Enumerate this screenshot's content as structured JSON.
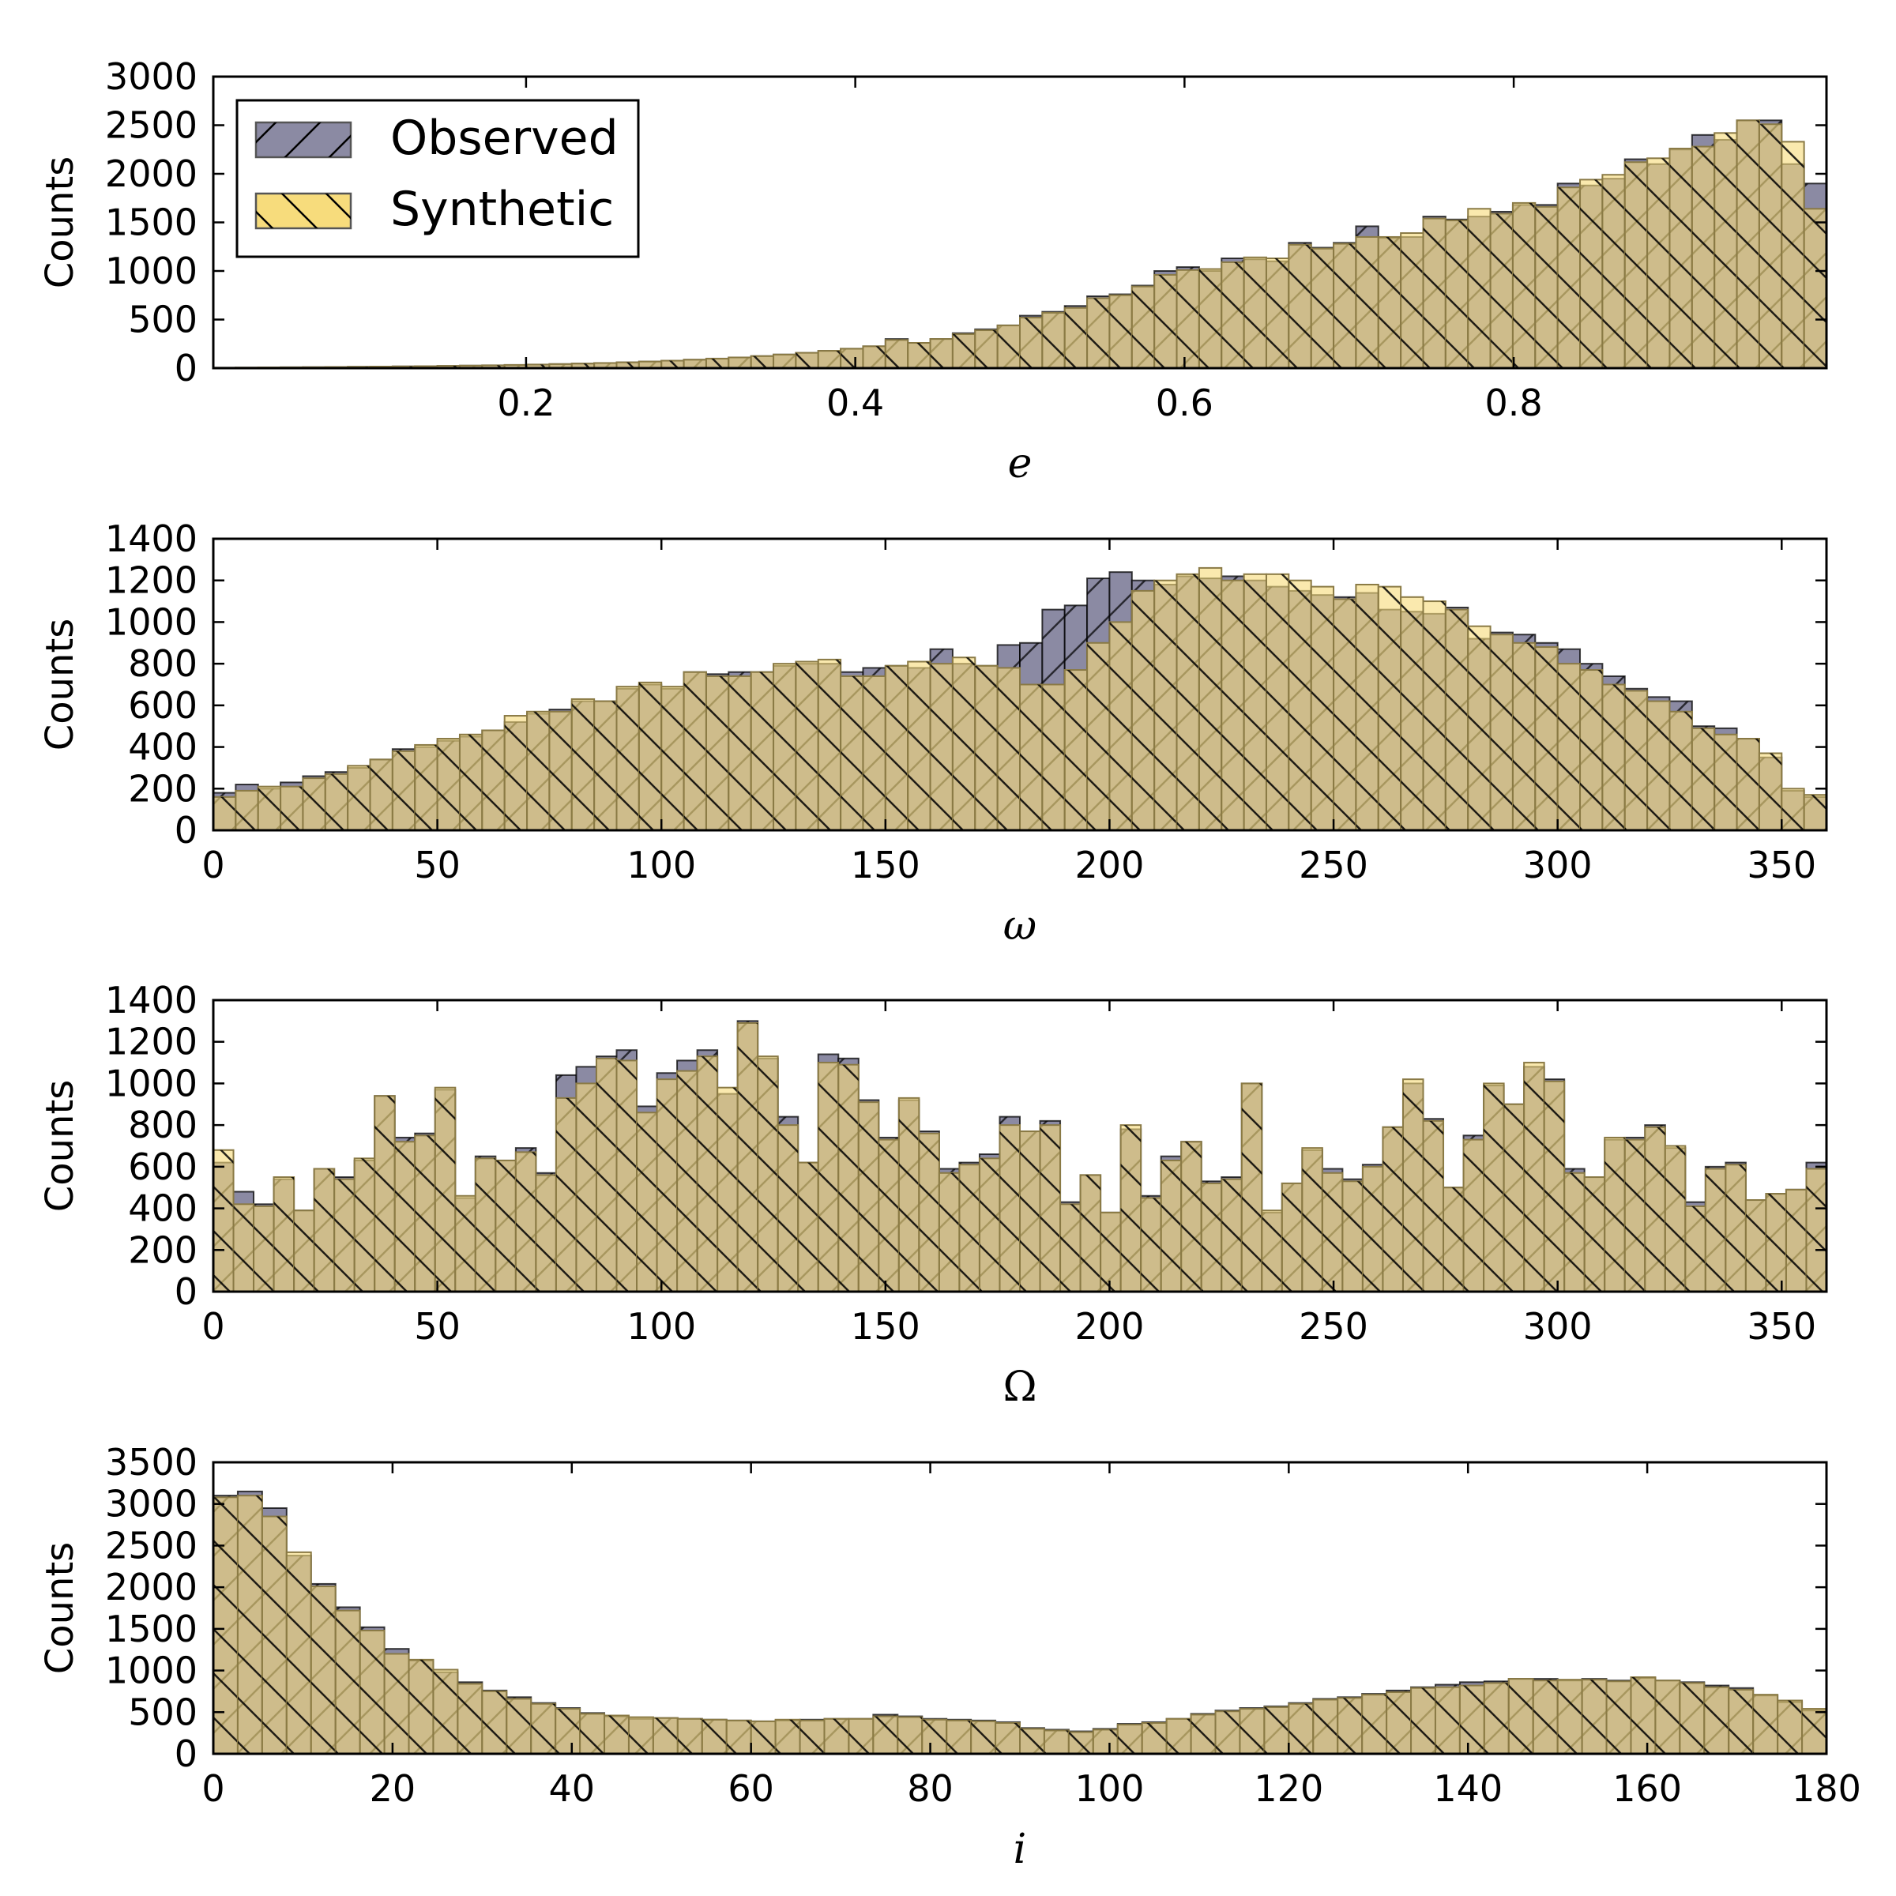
{
  "colors": {
    "observed_fill": "#8b8aa3",
    "synthetic_fill": "#f7dc7c",
    "overlap_fill": "#b9a36a",
    "edge": "#000000"
  },
  "legend": {
    "placement": "top-left of first panel",
    "items": [
      {
        "label": "Observed",
        "hatch": "forward-diagonal"
      },
      {
        "label": "Synthetic",
        "hatch": "back-diagonal"
      }
    ]
  },
  "chart_data": [
    {
      "type": "bar",
      "title": "",
      "xlabel": "e",
      "ylabel": "Counts",
      "xlim": [
        0.01,
        0.99
      ],
      "ylim": [
        0,
        3000
      ],
      "xticks": [
        0.2,
        0.4,
        0.6,
        0.8
      ],
      "xtick_labels": [
        "0.2",
        "0.4",
        "0.6",
        "0.8"
      ],
      "yticks": [
        0,
        500,
        1000,
        1500,
        2000,
        2500,
        3000
      ],
      "ytick_labels": [
        "0",
        "500",
        "1000",
        "1500",
        "2000",
        "2500",
        "3000"
      ],
      "grid": false,
      "series": [
        {
          "name": "Observed",
          "values": [
            5,
            6,
            8,
            9,
            10,
            12,
            14,
            16,
            18,
            20,
            23,
            26,
            29,
            33,
            37,
            42,
            47,
            53,
            60,
            68,
            77,
            87,
            98,
            110,
            124,
            140,
            158,
            178,
            200,
            225,
            300,
            260,
            300,
            360,
            400,
            440,
            540,
            580,
            640,
            740,
            760,
            850,
            1000,
            1040,
            1000,
            1130,
            1120,
            1100,
            1290,
            1240,
            1290,
            1460,
            1340,
            1350,
            1560,
            1530,
            1560,
            1610,
            1680,
            1680,
            1900,
            1880,
            1950,
            2150,
            2100,
            2250,
            2400,
            2350,
            2550,
            2550,
            2100,
            1900
          ]
        },
        {
          "name": "Synthetic",
          "values": [
            5,
            6,
            8,
            9,
            10,
            12,
            14,
            16,
            18,
            20,
            23,
            26,
            29,
            33,
            37,
            42,
            47,
            53,
            60,
            68,
            77,
            87,
            98,
            110,
            124,
            140,
            158,
            178,
            200,
            225,
            290,
            260,
            300,
            350,
            390,
            440,
            520,
            570,
            620,
            720,
            750,
            840,
            960,
            1010,
            1020,
            1090,
            1140,
            1130,
            1270,
            1230,
            1280,
            1350,
            1350,
            1390,
            1540,
            1520,
            1640,
            1590,
            1700,
            1660,
            1860,
            1940,
            1990,
            2120,
            2160,
            2260,
            2280,
            2420,
            2550,
            2510,
            2330,
            1640
          ]
        }
      ]
    },
    {
      "type": "bar",
      "title": "",
      "xlabel": "ω",
      "ylabel": "Counts",
      "xlim": [
        0,
        360
      ],
      "ylim": [
        0,
        1400
      ],
      "xticks": [
        0,
        50,
        100,
        150,
        200,
        250,
        300,
        350
      ],
      "xtick_labels": [
        "0",
        "50",
        "100",
        "150",
        "200",
        "250",
        "300",
        "350"
      ],
      "yticks": [
        0,
        200,
        400,
        600,
        800,
        1000,
        1200,
        1400
      ],
      "ytick_labels": [
        "0",
        "200",
        "400",
        "600",
        "800",
        "1000",
        "1200",
        "1400"
      ],
      "grid": false,
      "series": [
        {
          "name": "Observed",
          "values": [
            180,
            220,
            200,
            230,
            260,
            280,
            300,
            340,
            390,
            400,
            430,
            450,
            480,
            520,
            560,
            580,
            620,
            620,
            680,
            700,
            680,
            760,
            750,
            760,
            760,
            790,
            800,
            800,
            760,
            780,
            790,
            780,
            870,
            800,
            790,
            890,
            900,
            1060,
            1080,
            1210,
            1240,
            1200,
            1180,
            1220,
            1210,
            1220,
            1200,
            1170,
            1150,
            1130,
            1120,
            1140,
            1060,
            1050,
            1040,
            1070,
            920,
            950,
            940,
            900,
            870,
            800,
            740,
            680,
            640,
            620,
            500,
            490,
            440,
            350,
            190,
            160
          ]
        },
        {
          "name": "Synthetic",
          "values": [
            160,
            190,
            210,
            210,
            250,
            270,
            310,
            340,
            380,
            410,
            440,
            460,
            480,
            550,
            570,
            570,
            630,
            620,
            690,
            710,
            690,
            760,
            740,
            740,
            760,
            800,
            810,
            820,
            740,
            740,
            790,
            810,
            800,
            830,
            790,
            780,
            700,
            700,
            770,
            900,
            1000,
            1150,
            1200,
            1230,
            1260,
            1200,
            1230,
            1230,
            1200,
            1170,
            1110,
            1180,
            1170,
            1120,
            1100,
            1060,
            980,
            940,
            900,
            880,
            800,
            770,
            700,
            670,
            620,
            570,
            490,
            460,
            440,
            370,
            200,
            170
          ]
        }
      ]
    },
    {
      "type": "bar",
      "title": "",
      "xlabel": "Ω",
      "ylabel": "Counts",
      "xlim": [
        0,
        360
      ],
      "ylim": [
        0,
        1400
      ],
      "xticks": [
        0,
        50,
        100,
        150,
        200,
        250,
        300,
        350
      ],
      "xtick_labels": [
        "0",
        "50",
        "100",
        "150",
        "200",
        "250",
        "300",
        "350"
      ],
      "yticks": [
        0,
        200,
        400,
        600,
        800,
        1000,
        1200,
        1400
      ],
      "ytick_labels": [
        "0",
        "200",
        "400",
        "600",
        "800",
        "1000",
        "1200",
        "1400"
      ],
      "grid": false,
      "series": [
        {
          "name": "Observed",
          "values": [
            620,
            480,
            420,
            540,
            390,
            590,
            550,
            630,
            940,
            740,
            760,
            970,
            450,
            650,
            630,
            690,
            570,
            1040,
            1080,
            1130,
            1160,
            890,
            1050,
            1110,
            1160,
            950,
            1300,
            1120,
            840,
            620,
            1140,
            1120,
            920,
            740,
            920,
            770,
            590,
            620,
            660,
            840,
            770,
            820,
            430,
            560,
            380,
            780,
            460,
            650,
            720,
            530,
            550,
            1000,
            380,
            520,
            680,
            590,
            540,
            610,
            790,
            1000,
            830,
            500,
            750,
            990,
            900,
            1080,
            1020,
            590,
            550,
            730,
            740,
            800,
            690,
            430,
            600,
            620,
            440,
            470,
            490,
            620
          ]
        },
        {
          "name": "Synthetic",
          "values": [
            680,
            420,
            410,
            550,
            390,
            590,
            540,
            640,
            940,
            720,
            750,
            980,
            460,
            640,
            630,
            670,
            560,
            930,
            1000,
            1120,
            1110,
            860,
            1020,
            1060,
            1130,
            980,
            1290,
            1130,
            800,
            620,
            1100,
            1090,
            910,
            730,
            930,
            760,
            570,
            610,
            640,
            800,
            770,
            800,
            420,
            560,
            380,
            800,
            450,
            630,
            720,
            520,
            540,
            1000,
            390,
            520,
            690,
            570,
            530,
            600,
            790,
            1020,
            820,
            500,
            730,
            1000,
            900,
            1100,
            1010,
            570,
            550,
            740,
            730,
            790,
            700,
            410,
            590,
            610,
            440,
            470,
            490,
            590
          ]
        }
      ]
    },
    {
      "type": "bar",
      "title": "",
      "xlabel": "i",
      "ylabel": "Counts",
      "xlim": [
        0,
        180
      ],
      "ylim": [
        0,
        3500
      ],
      "xticks": [
        0,
        20,
        40,
        60,
        80,
        100,
        120,
        140,
        160,
        180
      ],
      "xtick_labels": [
        "0",
        "20",
        "40",
        "60",
        "80",
        "100",
        "120",
        "140",
        "160",
        "180"
      ],
      "yticks": [
        0,
        500,
        1000,
        1500,
        2000,
        2500,
        3000,
        3500
      ],
      "ytick_labels": [
        "0",
        "500",
        "1000",
        "1500",
        "2000",
        "2500",
        "3000",
        "3500"
      ],
      "grid": false,
      "series": [
        {
          "name": "Observed",
          "values": [
            3100,
            3150,
            2950,
            2380,
            2040,
            1760,
            1520,
            1260,
            1120,
            980,
            860,
            760,
            680,
            610,
            550,
            490,
            450,
            420,
            430,
            420,
            410,
            400,
            390,
            400,
            410,
            420,
            420,
            470,
            450,
            420,
            410,
            400,
            380,
            310,
            290,
            270,
            300,
            360,
            380,
            420,
            480,
            520,
            550,
            570,
            610,
            660,
            680,
            720,
            760,
            800,
            830,
            860,
            870,
            900,
            900,
            880,
            900,
            880,
            910,
            880,
            860,
            820,
            790,
            700,
            620,
            520
          ]
        },
        {
          "name": "Synthetic",
          "values": [
            3080,
            3100,
            2850,
            2420,
            2010,
            1720,
            1480,
            1200,
            1130,
            1010,
            840,
            750,
            660,
            600,
            540,
            480,
            460,
            440,
            430,
            420,
            410,
            400,
            390,
            410,
            400,
            420,
            420,
            450,
            440,
            410,
            400,
            390,
            370,
            300,
            280,
            260,
            290,
            350,
            370,
            420,
            470,
            510,
            540,
            560,
            600,
            650,
            670,
            710,
            740,
            790,
            800,
            820,
            850,
            900,
            880,
            890,
            890,
            870,
            920,
            880,
            850,
            800,
            770,
            710,
            640,
            540
          ]
        }
      ]
    }
  ]
}
